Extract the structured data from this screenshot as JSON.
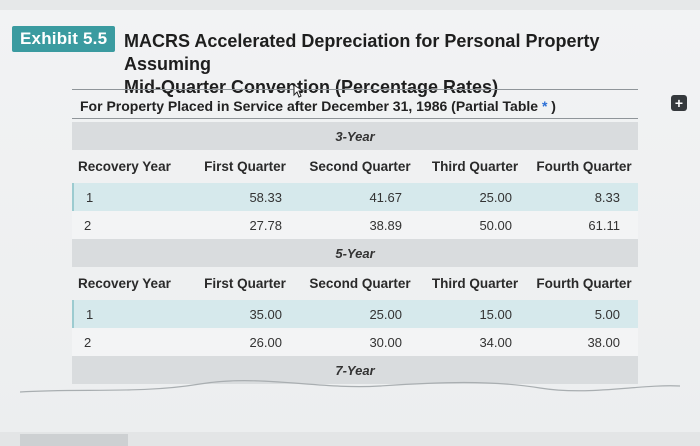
{
  "exhibit": {
    "badge": "Exhibit 5.5",
    "title_line1": "MACRS Accelerated Depreciation for Personal Property Assuming",
    "title_line2": "Mid-Quarter Convention (Percentage Rates)"
  },
  "subtitle": {
    "text": "For Property Placed in Service after December 31, 1986 (Partial Table",
    "star": "*",
    "close": " )"
  },
  "icons": {
    "expand": "plus-icon",
    "cursor": "mouse-pointer-icon"
  },
  "colors": {
    "badge": "#3b9ba0",
    "highlight_row": "#d6e9ec",
    "section_header": "#d9dcde"
  },
  "table": {
    "sections": [
      {
        "label": "3-Year",
        "columns": [
          "Recovery Year",
          "First Quarter",
          "Second Quarter",
          "Third Quarter",
          "Fourth Quarter"
        ],
        "rows": [
          [
            "1",
            "58.33",
            "41.67",
            "25.00",
            "8.33"
          ],
          [
            "2",
            "27.78",
            "38.89",
            "50.00",
            "61.11"
          ]
        ]
      },
      {
        "label": "5-Year",
        "columns": [
          "Recovery Year",
          "First Quarter",
          "Second Quarter",
          "Third Quarter",
          "Fourth Quarter"
        ],
        "rows": [
          [
            "1",
            "35.00",
            "25.00",
            "15.00",
            "5.00"
          ],
          [
            "2",
            "26.00",
            "30.00",
            "34.00",
            "38.00"
          ]
        ]
      },
      {
        "label": "7-Year"
      }
    ]
  }
}
